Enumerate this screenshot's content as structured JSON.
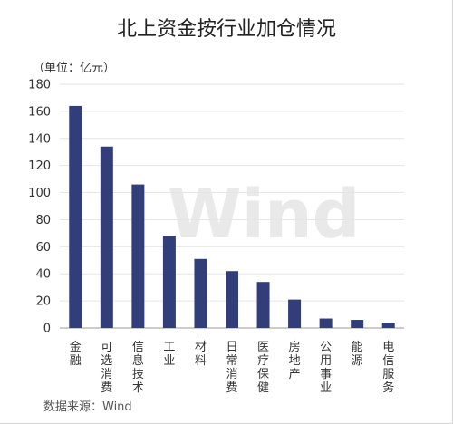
{
  "title": "北上资金按行业加仓情况",
  "unit_label": "（单位：亿元）",
  "source": "数据来源：Wind",
  "watermark": "Wind",
  "colors": {
    "bar": "#323e7a",
    "grid": "#e6e6e6",
    "axis": "#999999"
  },
  "chart_data": {
    "type": "bar",
    "categories": [
      "金融",
      "可选消费",
      "信息技术",
      "工业",
      "材料",
      "日常消费",
      "医疗保健",
      "房地产",
      "公用事业",
      "能源",
      "电信服务"
    ],
    "values": [
      164,
      134,
      106,
      68,
      51,
      42,
      34,
      21,
      7,
      6,
      4
    ],
    "yticks": [
      0,
      20,
      40,
      60,
      80,
      100,
      120,
      140,
      160,
      180
    ],
    "ylim": [
      0,
      180
    ],
    "grid": true
  }
}
